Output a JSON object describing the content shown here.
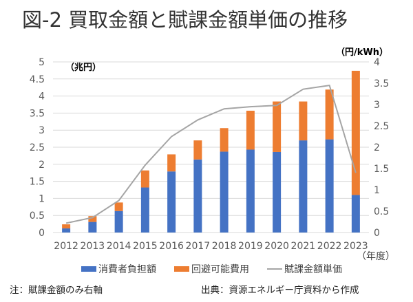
{
  "title": "図-2 買取金額と賦課金額単価の推移",
  "notes": {
    "left": "注：賦課金額のみ右軸",
    "right": "出典：資源エネルギー庁資料から作成"
  },
  "colors": {
    "consumer": "#4472C4",
    "avoidable": "#ED7D31",
    "unit_price": "#A5A5A5",
    "grid": "#D9D9D9"
  },
  "chart_data": {
    "type": "bar",
    "stacked": true,
    "title": "図-2 買取金額と賦課金額単価の推移",
    "categories": [
      "2012",
      "2013",
      "2014",
      "2015",
      "2016",
      "2017",
      "2018",
      "2019",
      "2020",
      "2021",
      "2022",
      "2023"
    ],
    "xlabel": "（年度）",
    "ylabel": "（兆円）",
    "ylabel_right": "（円/kWh）",
    "ylim": [
      0,
      5
    ],
    "ylim_right": [
      0,
      4
    ],
    "yticks": [
      "0",
      "0.5",
      "1",
      "1.5",
      "2",
      "2.5",
      "3",
      "3.5",
      "4",
      "4.5",
      "5"
    ],
    "yticks_right": [
      "0",
      "0.5",
      "1",
      "1.5",
      "2",
      "2.5",
      "3",
      "3.5",
      "4"
    ],
    "grid": true,
    "legend_position": "bottom",
    "series": [
      {
        "name": "消費者負担額",
        "type": "bar",
        "axis": "left",
        "values": [
          0.12,
          0.31,
          0.63,
          1.32,
          1.79,
          2.14,
          2.37,
          2.43,
          2.36,
          2.7,
          2.73,
          1.1
        ]
      },
      {
        "name": "回避可能費用",
        "type": "bar",
        "axis": "left",
        "values": [
          0.12,
          0.17,
          0.25,
          0.5,
          0.5,
          0.56,
          0.69,
          1.14,
          1.48,
          1.14,
          1.46,
          3.64
        ]
      },
      {
        "name": "賦課金額単価",
        "type": "line",
        "axis": "right",
        "values": [
          0.22,
          0.35,
          0.75,
          1.58,
          2.25,
          2.64,
          2.9,
          2.95,
          2.98,
          3.36,
          3.45,
          1.4
        ]
      }
    ]
  }
}
